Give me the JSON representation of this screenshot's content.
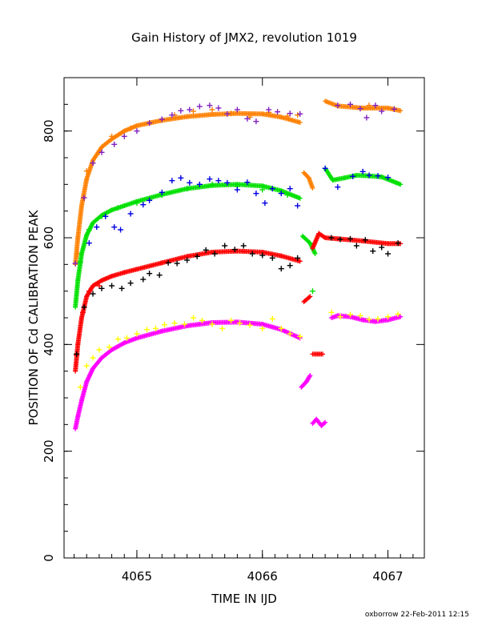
{
  "chart_data": {
    "type": "scatter",
    "title": "Gain History of JMX2, revolution 1019",
    "xlabel": "TIME IN IJD",
    "ylabel": "POSITION OF Cd CALIBRATION PEAK",
    "xlim": [
      4064.42,
      4067.29
    ],
    "ylim": [
      0,
      900
    ],
    "x_ticks": [
      "4065",
      "4066",
      "4067"
    ],
    "y_ticks": [
      "0",
      "200",
      "400",
      "600",
      "800"
    ],
    "x_tick_values": [
      4065,
      4066,
      4067
    ],
    "y_tick_values": [
      0,
      200,
      400,
      600,
      800
    ],
    "grid": false,
    "legend": "none",
    "footer": "oxborrow 22-Feb-2011 12:15",
    "series": [
      {
        "color": "#ff8000",
        "fit": [
          [
            4064.51,
            550
          ],
          [
            4064.53,
            600
          ],
          [
            4064.56,
            660
          ],
          [
            4064.6,
            710
          ],
          [
            4064.65,
            745
          ],
          [
            4064.72,
            770
          ],
          [
            4064.8,
            785
          ],
          [
            4064.9,
            800
          ],
          [
            4065.0,
            810
          ],
          [
            4065.2,
            820
          ],
          [
            4065.4,
            827
          ],
          [
            4065.6,
            831
          ],
          [
            4065.8,
            833
          ],
          [
            4066.0,
            832
          ],
          [
            4066.15,
            826
          ],
          [
            4066.3,
            816
          ],
          [
            4066.33,
            722
          ],
          [
            4066.37,
            712
          ],
          [
            4066.4,
            693
          ],
          [
            4066.5,
            856
          ],
          [
            4066.6,
            847
          ],
          [
            4066.8,
            843
          ],
          [
            4067.0,
            843
          ],
          [
            4067.1,
            838
          ]
        ],
        "scatter": [
          [
            4064.53,
            570
          ],
          [
            4064.6,
            725
          ],
          [
            4064.7,
            760
          ],
          [
            4064.8,
            790
          ],
          [
            4064.95,
            805
          ],
          [
            4065.1,
            815
          ],
          [
            4065.3,
            830
          ],
          [
            4065.45,
            837
          ],
          [
            4065.6,
            840
          ],
          [
            4065.75,
            833
          ],
          [
            4065.9,
            826
          ],
          [
            4066.05,
            835
          ],
          [
            4066.2,
            828
          ],
          [
            4066.28,
            830
          ],
          [
            4066.85,
            848
          ],
          [
            4067.05,
            841
          ]
        ]
      },
      {
        "color": "#8020c0",
        "fit": [],
        "scatter": [
          [
            4064.51,
            552
          ],
          [
            4064.58,
            675
          ],
          [
            4064.65,
            740
          ],
          [
            4064.72,
            760
          ],
          [
            4064.82,
            775
          ],
          [
            4064.9,
            790
          ],
          [
            4065.0,
            800
          ],
          [
            4065.1,
            815
          ],
          [
            4065.2,
            822
          ],
          [
            4065.28,
            830
          ],
          [
            4065.35,
            838
          ],
          [
            4065.42,
            840
          ],
          [
            4065.5,
            846
          ],
          [
            4065.58,
            848
          ],
          [
            4065.65,
            843
          ],
          [
            4065.72,
            832
          ],
          [
            4065.8,
            840
          ],
          [
            4065.88,
            823
          ],
          [
            4065.95,
            818
          ],
          [
            4066.05,
            840
          ],
          [
            4066.12,
            836
          ],
          [
            4066.22,
            833
          ],
          [
            4066.3,
            832
          ],
          [
            4066.6,
            848
          ],
          [
            4066.7,
            850
          ],
          [
            4066.78,
            842
          ],
          [
            4066.83,
            825
          ],
          [
            4066.9,
            848
          ],
          [
            4066.95,
            837
          ],
          [
            4067.05,
            841
          ]
        ]
      },
      {
        "color": "#00e000",
        "fit": [
          [
            4064.51,
            470
          ],
          [
            4064.53,
            520
          ],
          [
            4064.56,
            570
          ],
          [
            4064.6,
            605
          ],
          [
            4064.65,
            628
          ],
          [
            4064.72,
            642
          ],
          [
            4064.8,
            652
          ],
          [
            4064.9,
            660
          ],
          [
            4065.0,
            668
          ],
          [
            4065.2,
            681
          ],
          [
            4065.4,
            692
          ],
          [
            4065.6,
            698
          ],
          [
            4065.8,
            700
          ],
          [
            4066.0,
            697
          ],
          [
            4066.15,
            688
          ],
          [
            4066.3,
            674
          ],
          [
            4066.32,
            603
          ],
          [
            4066.38,
            590
          ],
          [
            4066.42,
            570
          ],
          [
            4066.45,
            505
          ],
          [
            4066.5,
            730
          ],
          [
            4066.56,
            708
          ],
          [
            4066.65,
            712
          ],
          [
            4066.75,
            717
          ],
          [
            4066.85,
            716
          ],
          [
            4066.95,
            714
          ],
          [
            4067.1,
            700
          ]
        ],
        "scatter": [
          [
            4064.55,
            555
          ],
          [
            4064.62,
            615
          ],
          [
            4064.72,
            640
          ],
          [
            4064.85,
            656
          ],
          [
            4065.0,
            665
          ],
          [
            4065.2,
            680
          ],
          [
            4065.4,
            692
          ],
          [
            4065.6,
            700
          ],
          [
            4065.8,
            696
          ],
          [
            4066.0,
            690
          ],
          [
            4066.2,
            680
          ],
          [
            4066.4,
            500
          ]
        ]
      },
      {
        "color": "#0000e0",
        "fit": [],
        "scatter": [
          [
            4064.62,
            590
          ],
          [
            4064.68,
            620
          ],
          [
            4064.75,
            640
          ],
          [
            4064.82,
            620
          ],
          [
            4064.87,
            615
          ],
          [
            4064.95,
            645
          ],
          [
            4065.05,
            662
          ],
          [
            4065.1,
            670
          ],
          [
            4065.2,
            685
          ],
          [
            4065.28,
            707
          ],
          [
            4065.35,
            712
          ],
          [
            4065.42,
            703
          ],
          [
            4065.5,
            700
          ],
          [
            4065.58,
            710
          ],
          [
            4065.65,
            707
          ],
          [
            4065.72,
            703
          ],
          [
            4065.8,
            690
          ],
          [
            4065.88,
            704
          ],
          [
            4065.95,
            683
          ],
          [
            4066.02,
            665
          ],
          [
            4066.08,
            692
          ],
          [
            4066.15,
            683
          ],
          [
            4066.22,
            692
          ],
          [
            4066.28,
            660
          ],
          [
            4066.5,
            730
          ],
          [
            4066.6,
            695
          ],
          [
            4066.72,
            715
          ],
          [
            4066.8,
            724
          ],
          [
            4066.85,
            717
          ],
          [
            4066.92,
            716
          ],
          [
            4067.0,
            713
          ]
        ]
      },
      {
        "color": "#ff0000",
        "fit": [
          [
            4064.51,
            350
          ],
          [
            4064.53,
            400
          ],
          [
            4064.56,
            450
          ],
          [
            4064.6,
            490
          ],
          [
            4064.65,
            510
          ],
          [
            4064.72,
            520
          ],
          [
            4064.8,
            528
          ],
          [
            4064.9,
            535
          ],
          [
            4065.0,
            541
          ],
          [
            4065.2,
            553
          ],
          [
            4065.4,
            565
          ],
          [
            4065.6,
            573
          ],
          [
            4065.8,
            575
          ],
          [
            4066.0,
            573
          ],
          [
            4066.15,
            566
          ],
          [
            4066.3,
            556
          ],
          [
            4066.33,
            480
          ],
          [
            4066.38,
            490
          ],
          [
            4066.4,
            382
          ],
          [
            4066.48,
            382
          ],
          [
            4066.4,
            580
          ],
          [
            4066.45,
            608
          ],
          [
            4066.5,
            600
          ],
          [
            4066.6,
            598
          ],
          [
            4066.8,
            594
          ],
          [
            4067.0,
            589
          ],
          [
            4067.1,
            589
          ]
        ],
        "scatter": [
          [
            4064.52,
            380
          ],
          [
            4064.57,
            460
          ],
          [
            4064.62,
            500
          ],
          [
            4064.7,
            510
          ]
        ]
      },
      {
        "color": "#000000",
        "fit": [],
        "scatter": [
          [
            4064.52,
            382
          ],
          [
            4064.58,
            470
          ],
          [
            4064.65,
            495
          ],
          [
            4064.72,
            505
          ],
          [
            4064.8,
            510
          ],
          [
            4064.88,
            505
          ],
          [
            4064.95,
            515
          ],
          [
            4065.05,
            522
          ],
          [
            4065.1,
            533
          ],
          [
            4065.18,
            530
          ],
          [
            4065.25,
            553
          ],
          [
            4065.32,
            552
          ],
          [
            4065.4,
            558
          ],
          [
            4065.48,
            565
          ],
          [
            4065.55,
            577
          ],
          [
            4065.62,
            570
          ],
          [
            4065.7,
            585
          ],
          [
            4065.78,
            578
          ],
          [
            4065.85,
            585
          ],
          [
            4065.92,
            570
          ],
          [
            4066.0,
            567
          ],
          [
            4066.08,
            562
          ],
          [
            4066.15,
            542
          ],
          [
            4066.22,
            548
          ],
          [
            4066.28,
            562
          ],
          [
            4066.55,
            600
          ],
          [
            4066.62,
            597
          ],
          [
            4066.7,
            598
          ],
          [
            4066.75,
            585
          ],
          [
            4066.82,
            596
          ],
          [
            4066.88,
            575
          ],
          [
            4066.95,
            582
          ],
          [
            4067.0,
            570
          ],
          [
            4067.08,
            590
          ]
        ]
      },
      {
        "color": "#ff00ff",
        "fit": [
          [
            4064.51,
            242
          ],
          [
            4064.53,
            265
          ],
          [
            4064.56,
            295
          ],
          [
            4064.6,
            330
          ],
          [
            4064.65,
            355
          ],
          [
            4064.72,
            375
          ],
          [
            4064.8,
            390
          ],
          [
            4064.9,
            403
          ],
          [
            4065.0,
            412
          ],
          [
            4065.2,
            425
          ],
          [
            4065.4,
            435
          ],
          [
            4065.6,
            441
          ],
          [
            4065.8,
            442
          ],
          [
            4066.0,
            438
          ],
          [
            4066.15,
            428
          ],
          [
            4066.3,
            412
          ],
          [
            4066.31,
            320
          ],
          [
            4066.35,
            330
          ],
          [
            4066.38,
            342
          ],
          [
            4066.4,
            252
          ],
          [
            4066.43,
            260
          ],
          [
            4066.47,
            248
          ],
          [
            4066.5,
            254
          ],
          [
            4066.55,
            450
          ],
          [
            4066.6,
            454
          ],
          [
            4066.7,
            452
          ],
          [
            4066.8,
            446
          ],
          [
            4066.9,
            443
          ],
          [
            4067.0,
            446
          ],
          [
            4067.1,
            452
          ]
        ],
        "scatter": []
      },
      {
        "color": "#ffff00",
        "fit": [],
        "scatter": [
          [
            4064.55,
            320
          ],
          [
            4064.6,
            360
          ],
          [
            4064.65,
            375
          ],
          [
            4064.7,
            390
          ],
          [
            4064.78,
            395
          ],
          [
            4064.85,
            410
          ],
          [
            4064.92,
            412
          ],
          [
            4065.0,
            420
          ],
          [
            4065.08,
            428
          ],
          [
            4065.15,
            430
          ],
          [
            4065.22,
            437
          ],
          [
            4065.3,
            440
          ],
          [
            4065.38,
            438
          ],
          [
            4065.45,
            450
          ],
          [
            4065.52,
            445
          ],
          [
            4065.6,
            438
          ],
          [
            4065.68,
            430
          ],
          [
            4065.75,
            445
          ],
          [
            4065.82,
            440
          ],
          [
            4065.9,
            436
          ],
          [
            4066.0,
            430
          ],
          [
            4066.08,
            448
          ],
          [
            4066.15,
            430
          ],
          [
            4066.22,
            420
          ],
          [
            4066.3,
            415
          ],
          [
            4066.55,
            460
          ],
          [
            4066.62,
            452
          ],
          [
            4066.7,
            456
          ],
          [
            4066.78,
            454
          ],
          [
            4066.85,
            447
          ],
          [
            4066.92,
            448
          ],
          [
            4067.0,
            452
          ],
          [
            4067.08,
            457
          ]
        ]
      }
    ]
  }
}
